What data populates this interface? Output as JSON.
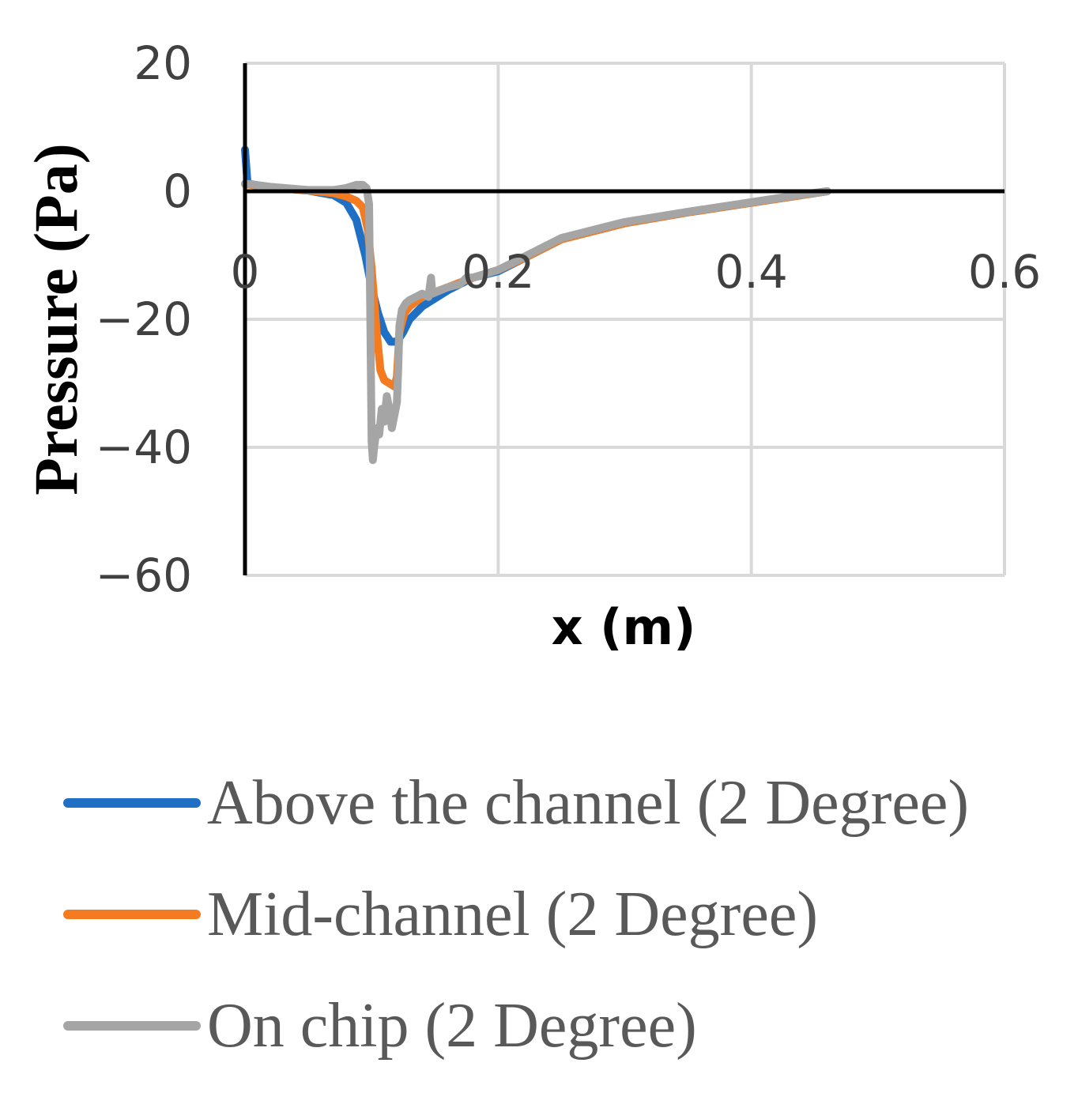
{
  "chart_data": {
    "type": "line",
    "title": "",
    "xlabel": "x (m)",
    "ylabel": "Pressure (Pa)",
    "xlim": [
      0,
      0.6
    ],
    "ylim": [
      -60,
      20
    ],
    "x_ticks": [
      "0",
      "0.2",
      "0.4",
      "0.6"
    ],
    "y_ticks": [
      "20",
      "0",
      "−20",
      "−40",
      "−60"
    ],
    "grid": true,
    "legend_position": "bottom",
    "series": [
      {
        "name": "Above the channel (2 Degree)",
        "color": "#1f6fc4",
        "points": [
          [
            0,
            6.5
          ],
          [
            0.002,
            1.2
          ],
          [
            0.02,
            0.6
          ],
          [
            0.05,
            0.1
          ],
          [
            0.07,
            -0.6
          ],
          [
            0.08,
            -1.8
          ],
          [
            0.088,
            -4.5
          ],
          [
            0.095,
            -10
          ],
          [
            0.1,
            -15
          ],
          [
            0.105,
            -19
          ],
          [
            0.11,
            -22
          ],
          [
            0.115,
            -23.5
          ],
          [
            0.12,
            -23.5
          ],
          [
            0.125,
            -22
          ],
          [
            0.13,
            -20
          ],
          [
            0.14,
            -18
          ],
          [
            0.16,
            -15.5
          ],
          [
            0.18,
            -13.5
          ],
          [
            0.2,
            -12.5
          ],
          [
            0.22,
            -10.5
          ],
          [
            0.25,
            -7.5
          ],
          [
            0.3,
            -5
          ],
          [
            0.35,
            -3.3
          ],
          [
            0.4,
            -1.8
          ],
          [
            0.44,
            -0.6
          ],
          [
            0.46,
            0
          ]
        ]
      },
      {
        "name": "Mid-channel (2 Degree)",
        "color": "#f47b20",
        "points": [
          [
            0,
            1.1
          ],
          [
            0.02,
            0.6
          ],
          [
            0.05,
            0.1
          ],
          [
            0.07,
            -0.3
          ],
          [
            0.08,
            -0.8
          ],
          [
            0.088,
            -1.5
          ],
          [
            0.093,
            -2.5
          ],
          [
            0.097,
            -6
          ],
          [
            0.1,
            -12
          ],
          [
            0.104,
            -22
          ],
          [
            0.107,
            -28
          ],
          [
            0.11,
            -29.5
          ],
          [
            0.114,
            -30
          ],
          [
            0.118,
            -30.5
          ],
          [
            0.12,
            -29
          ],
          [
            0.122,
            -22
          ],
          [
            0.126,
            -19
          ],
          [
            0.13,
            -18
          ],
          [
            0.14,
            -16.5
          ],
          [
            0.16,
            -15
          ],
          [
            0.18,
            -13.5
          ],
          [
            0.2,
            -12.3
          ],
          [
            0.22,
            -10.5
          ],
          [
            0.25,
            -7.5
          ],
          [
            0.3,
            -5
          ],
          [
            0.35,
            -3.3
          ],
          [
            0.4,
            -1.8
          ],
          [
            0.44,
            -0.6
          ],
          [
            0.46,
            0
          ]
        ]
      },
      {
        "name": "On chip (2 Degree)",
        "color": "#a5a5a5",
        "points": [
          [
            0,
            1.2
          ],
          [
            0.02,
            0.7
          ],
          [
            0.05,
            0.2
          ],
          [
            0.07,
            0.2
          ],
          [
            0.08,
            0.5
          ],
          [
            0.088,
            1
          ],
          [
            0.093,
            1
          ],
          [
            0.096,
            0.5
          ],
          [
            0.098,
            -2
          ],
          [
            0.099,
            -20
          ],
          [
            0.1,
            -39
          ],
          [
            0.101,
            -42
          ],
          [
            0.102,
            -40
          ],
          [
            0.104,
            -37
          ],
          [
            0.106,
            -38
          ],
          [
            0.108,
            -34
          ],
          [
            0.11,
            -36
          ],
          [
            0.112,
            -32
          ],
          [
            0.114,
            -34
          ],
          [
            0.116,
            -37
          ],
          [
            0.118,
            -35
          ],
          [
            0.12,
            -33
          ],
          [
            0.121,
            -28
          ],
          [
            0.122,
            -21
          ],
          [
            0.124,
            -18.5
          ],
          [
            0.127,
            -17.5
          ],
          [
            0.13,
            -17
          ],
          [
            0.135,
            -16.5
          ],
          [
            0.14,
            -16
          ],
          [
            0.145,
            -16.5
          ],
          [
            0.147,
            -13.5
          ],
          [
            0.148,
            -16
          ],
          [
            0.16,
            -15
          ],
          [
            0.17,
            -14.5
          ],
          [
            0.175,
            -13.5
          ],
          [
            0.18,
            -13.5
          ],
          [
            0.2,
            -12.3
          ],
          [
            0.22,
            -10.3
          ],
          [
            0.25,
            -7.3
          ],
          [
            0.3,
            -4.8
          ],
          [
            0.35,
            -3.2
          ],
          [
            0.4,
            -1.7
          ],
          [
            0.44,
            -0.5
          ],
          [
            0.46,
            0
          ]
        ]
      }
    ]
  }
}
